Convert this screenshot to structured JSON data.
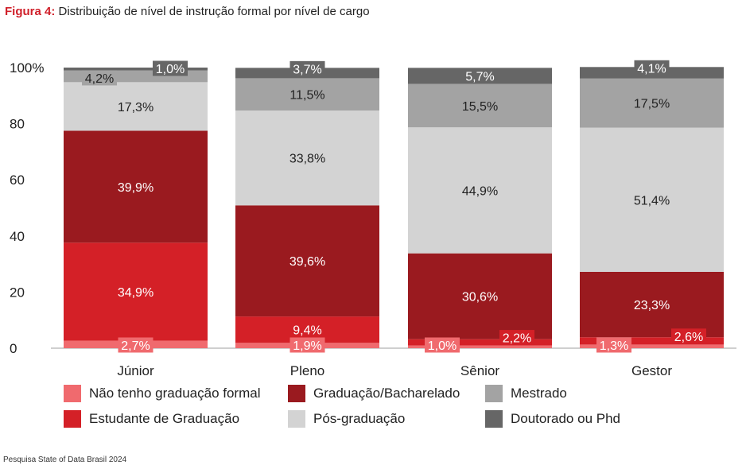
{
  "figure_label": "Figura 4:",
  "figure_title": "Distribuição de nível de instrução formal por nível de cargo",
  "source": "Pesquisa State of Data Brasil 2024",
  "chart_data": {
    "type": "bar",
    "stacked": true,
    "percent_stacked": true,
    "categories": [
      "Júnior",
      "Pleno",
      "Sênior",
      "Gestor"
    ],
    "y_ticks": [
      "0",
      "20",
      "40",
      "60",
      "80",
      "100%"
    ],
    "ylim": [
      0,
      100
    ],
    "grid": false,
    "legend_position": "bottom",
    "series": [
      {
        "name": "Não tenho graduação formal",
        "color": "#f06a6e",
        "values": [
          2.7,
          1.9,
          1.0,
          1.3
        ],
        "labels": [
          "2,7%",
          "1,9%",
          "1,0%",
          "1,3%"
        ]
      },
      {
        "name": "Estudante de Graduação",
        "color": "#d42027",
        "values": [
          34.9,
          9.4,
          2.2,
          2.6
        ],
        "labels": [
          "34,9%",
          "9,4%",
          "2,2%",
          "2,6%"
        ]
      },
      {
        "name": "Graduação/Bacharelado",
        "color": "#9a1a1f",
        "values": [
          39.9,
          39.6,
          30.6,
          23.3
        ],
        "labels": [
          "39,9%",
          "39,6%",
          "30,6%",
          "23,3%"
        ]
      },
      {
        "name": "Pós-graduação",
        "color": "#d3d3d3",
        "values": [
          17.3,
          33.8,
          44.9,
          51.4
        ],
        "labels": [
          "17,3%",
          "33,8%",
          "44,9%",
          "51,4%"
        ]
      },
      {
        "name": "Mestrado",
        "color": "#a3a3a3",
        "values": [
          4.2,
          11.5,
          15.5,
          17.5
        ],
        "labels": [
          "4,2%",
          "11,5%",
          "15,5%",
          "17,5%"
        ]
      },
      {
        "name": "Doutorado ou Phd",
        "color": "#666666",
        "values": [
          1.0,
          3.7,
          5.7,
          4.1
        ],
        "labels": [
          "1,0%",
          "3,7%",
          "5,7%",
          "4,1%"
        ]
      }
    ]
  }
}
